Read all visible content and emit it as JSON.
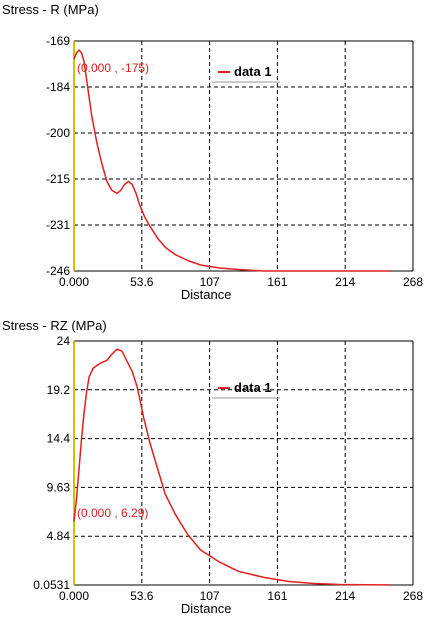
{
  "chart_data": [
    {
      "type": "line",
      "title": "Stress - R (MPa)",
      "xlabel": "Distance",
      "ylabel": "",
      "xlim": [
        0,
        268
      ],
      "ylim": [
        -246,
        -169
      ],
      "x_ticks": [
        "0.000",
        "53.6",
        "107",
        "161",
        "214",
        "268"
      ],
      "y_ticks": [
        "-169",
        "-184",
        "-200",
        "-215",
        "-231",
        "-246"
      ],
      "grid": true,
      "legend_position": "top-right",
      "annotation": "(0.000 , -175)",
      "series": [
        {
          "name": "data 1",
          "color": "#e02020",
          "x": [
            0,
            2,
            4,
            6,
            8,
            11,
            14,
            18,
            22,
            26,
            30,
            34,
            37,
            40,
            43,
            46,
            49,
            52,
            56,
            60,
            66,
            72,
            80,
            90,
            100,
            115,
            130,
            150,
            170,
            190,
            210,
            230,
            250
          ],
          "y": [
            -175,
            -173,
            -172,
            -173,
            -176,
            -185,
            -194,
            -203,
            -210,
            -216,
            -219,
            -220,
            -219,
            -217,
            -216,
            -217,
            -220,
            -224,
            -228,
            -231,
            -235,
            -238,
            -240.5,
            -242.5,
            -244,
            -245,
            -245.5,
            -246,
            -246,
            -246,
            -246,
            -246,
            -246
          ]
        }
      ]
    },
    {
      "type": "line",
      "title": "Stress - RZ (MPa)",
      "xlabel": "Distance",
      "ylabel": "",
      "xlim": [
        0,
        268
      ],
      "ylim": [
        0.0531,
        24
      ],
      "x_ticks": [
        "0.000",
        "53.6",
        "107",
        "161",
        "214",
        "268"
      ],
      "y_ticks": [
        "24",
        "19.2",
        "14.4",
        "9.63",
        "4.84",
        "0.0531"
      ],
      "grid": true,
      "legend_position": "top-right",
      "annotation": "(0.000 , 6.29)",
      "series": [
        {
          "name": "data 1",
          "color": "#e02020",
          "x": [
            0,
            2,
            4,
            6,
            8,
            10,
            12,
            15,
            18,
            22,
            26,
            30,
            34,
            38,
            42,
            46,
            50,
            55,
            60,
            66,
            72,
            80,
            90,
            100,
            115,
            130,
            150,
            170,
            190,
            210,
            230,
            250
          ],
          "y": [
            6.29,
            8.5,
            11.5,
            14.5,
            17,
            19,
            20.5,
            21.3,
            21.6,
            21.9,
            22.1,
            22.7,
            23.2,
            23,
            22,
            21,
            19.5,
            16.5,
            14,
            11.5,
            9,
            7,
            5,
            3.5,
            2.3,
            1.4,
            0.8,
            0.4,
            0.2,
            0.1,
            0.08,
            0.06
          ]
        }
      ]
    }
  ]
}
